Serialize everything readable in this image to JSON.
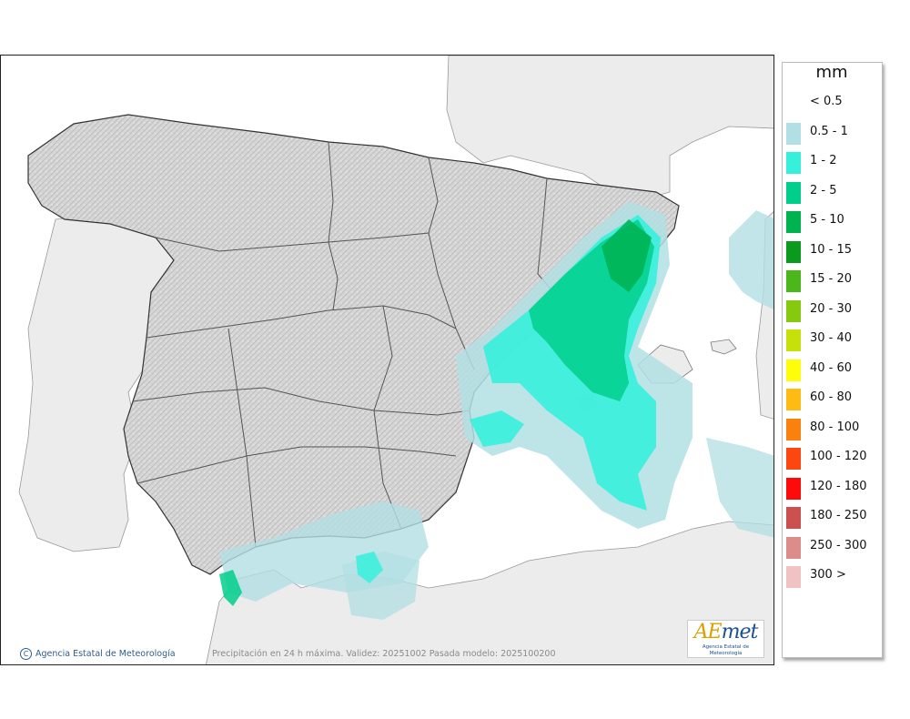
{
  "map": {
    "credit": "Agencia Estatal de Meteorología",
    "credit_icon": "copyright-icon",
    "caption": "Precipitación en 24 h máxima. Validez: 20251002 Pasada modelo: 2025100200",
    "logo": {
      "word_a": "AE",
      "word_b": "met",
      "subtitle": "Agencia Estatal de Meteorología"
    }
  },
  "legend": {
    "unit": "mm",
    "classes": [
      {
        "label": "< 0.5",
        "color": "#ffffff"
      },
      {
        "label": "0.5 - 1",
        "color": "#b2dfe3"
      },
      {
        "label": "1 - 2",
        "color": "#36f0dc"
      },
      {
        "label": "2 - 5",
        "color": "#00cf8b"
      },
      {
        "label": "5 - 10",
        "color": "#00b250"
      },
      {
        "label": "10 - 15",
        "color": "#0a9a1e"
      },
      {
        "label": "15 - 20",
        "color": "#4cb71b"
      },
      {
        "label": "20 - 30",
        "color": "#86c90f"
      },
      {
        "label": "30 - 40",
        "color": "#c6e10a"
      },
      {
        "label": "40 - 60",
        "color": "#fefe0b"
      },
      {
        "label": "60 - 80",
        "color": "#fdbb14"
      },
      {
        "label": "80 - 100",
        "color": "#fb810f"
      },
      {
        "label": "100 - 120",
        "color": "#fc4710"
      },
      {
        "label": "120 - 180",
        "color": "#fd0a0a"
      },
      {
        "label": "180 - 250",
        "color": "#cc5050"
      },
      {
        "label": "250 - 300",
        "color": "#dd8c8c"
      },
      {
        "label": "300 >",
        "color": "#f1c2c2"
      }
    ]
  }
}
